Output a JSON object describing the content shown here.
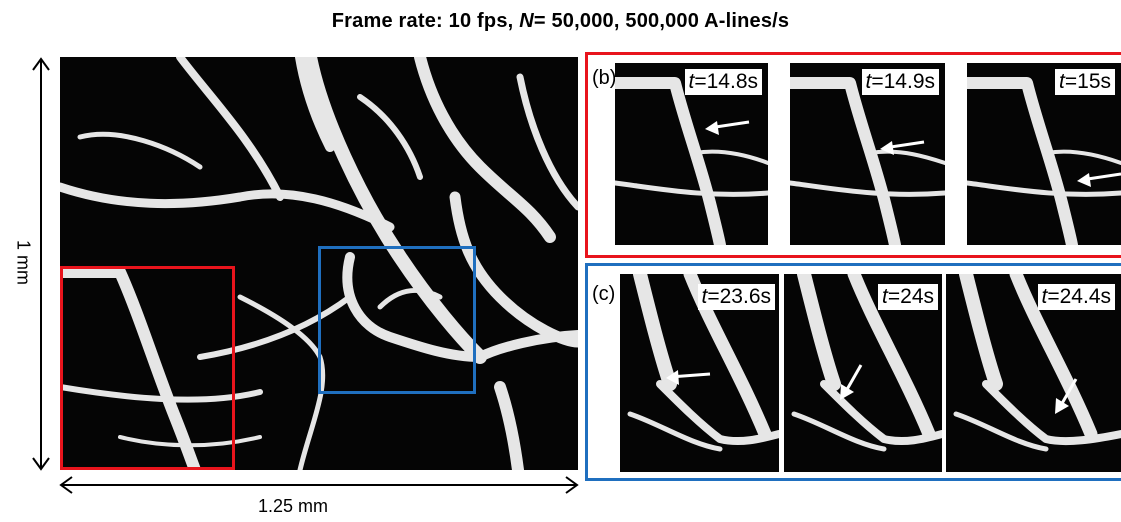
{
  "figure": {
    "title_prefix": "Frame rate: 10 fps, ",
    "title_n": "N",
    "title_suffix": "= 50,000, 500,000 A-lines/s",
    "scale_vertical": "1 mm",
    "scale_horizontal": "1.25 mm"
  },
  "panel_b": {
    "label": "(b)",
    "frames": [
      {
        "t_var": "t",
        "t_value": "=14.8s"
      },
      {
        "t_var": "t",
        "t_value": "=14.9s"
      },
      {
        "t_var": "t",
        "t_value": "=15s"
      }
    ]
  },
  "panel_c": {
    "label": "(c)",
    "frames": [
      {
        "t_var": "t",
        "t_value": "=23.6s"
      },
      {
        "t_var": "t",
        "t_value": "=24s"
      },
      {
        "t_var": "t",
        "t_value": "=24.4s"
      }
    ]
  },
  "colors": {
    "red_box": "#e8141c",
    "blue_box": "#1f6fbf",
    "vessel": "#e6e6e6",
    "background": "#050505"
  }
}
